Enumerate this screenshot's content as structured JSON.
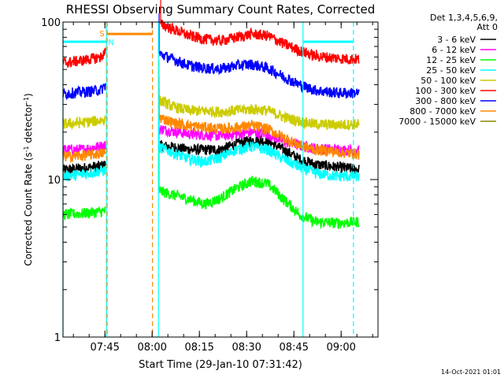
{
  "chart_data": {
    "type": "line",
    "title": "RHESSI Observing Summary Count Rates, Corrected",
    "xlabel": "Start Time (29-Jan-10 07:31:42)",
    "ylabel_main": "Corrected Count Rate (s",
    "ylabel_sup1": "-1",
    "ylabel_mid": " detector",
    "ylabel_sup2": "-1",
    "ylabel_end": ")",
    "x_range_min": [
      0,
      100
    ],
    "ylim": [
      1,
      100
    ],
    "yscale": "log",
    "x_ticks": [
      {
        "label": "07:45",
        "min": 13.3
      },
      {
        "label": "08:00",
        "min": 28.3
      },
      {
        "label": "08:15",
        "min": 43.3
      },
      {
        "label": "08:30",
        "min": 58.3
      },
      {
        "label": "08:45",
        "min": 73.3
      },
      {
        "label": "09:00",
        "min": 88.3
      }
    ],
    "y_tick_labels": [
      {
        "label": "1",
        "v": 1
      },
      {
        "label": "10",
        "v": 10
      },
      {
        "label": "100",
        "v": 100
      }
    ],
    "legend_header": [
      "Det 1,3,4,5,6,9,",
      "Att 0"
    ],
    "legend_position": "right",
    "series": [
      {
        "name": "3 - 6 keV",
        "color": "#000000",
        "segments": [
          [
            [
              0,
              11.5
            ],
            [
              6,
              11.8
            ],
            [
              12,
              12.2
            ],
            [
              13.5,
              12.5
            ]
          ],
          [
            [
              30.5,
              16.5
            ],
            [
              40,
              15.5
            ],
            [
              50,
              15.5
            ],
            [
              55,
              16.8
            ],
            [
              60,
              17.8
            ],
            [
              65,
              17.5
            ],
            [
              70,
              15.5
            ],
            [
              75,
              13.5
            ],
            [
              80,
              12.5
            ],
            [
              87,
              12.0
            ],
            [
              94,
              11.6
            ]
          ]
        ]
      },
      {
        "name": "6 - 12 keV",
        "color": "#ff00ff",
        "segments": [
          [
            [
              0,
              15.5
            ],
            [
              6,
              15.5
            ],
            [
              13.5,
              16.5
            ]
          ],
          [
            [
              30.5,
              21
            ],
            [
              40,
              19.5
            ],
            [
              50,
              19.0
            ],
            [
              55,
              19.5
            ],
            [
              60,
              20.0
            ],
            [
              65,
              19.5
            ],
            [
              70,
              17.5
            ],
            [
              75,
              16.5
            ],
            [
              80,
              15.8
            ],
            [
              87,
              15.5
            ],
            [
              94,
              15.3
            ]
          ]
        ]
      },
      {
        "name": "12 - 25 keV",
        "color": "#00ff00",
        "segments": [
          [
            [
              0,
              6.0
            ],
            [
              6,
              6.1
            ],
            [
              13.5,
              6.3
            ]
          ],
          [
            [
              30.5,
              8.5
            ],
            [
              35,
              8.0
            ],
            [
              40,
              7.5
            ],
            [
              45,
              7.0
            ],
            [
              50,
              7.6
            ],
            [
              55,
              8.8
            ],
            [
              60,
              9.8
            ],
            [
              65,
              9.4
            ],
            [
              70,
              7.5
            ],
            [
              75,
              6.0
            ],
            [
              80,
              5.4
            ],
            [
              87,
              5.3
            ],
            [
              94,
              5.4
            ]
          ]
        ]
      },
      {
        "name": "25 - 50 keV",
        "color": "#00ffff",
        "segments": [
          [
            [
              0,
              10.5
            ],
            [
              6,
              10.8
            ],
            [
              13.5,
              11.5
            ]
          ],
          [
            [
              30.5,
              16.0
            ],
            [
              40,
              13.5
            ],
            [
              45,
              13.0
            ],
            [
              50,
              13.8
            ],
            [
              55,
              15.5
            ],
            [
              60,
              16.2
            ],
            [
              65,
              15.5
            ],
            [
              70,
              13.5
            ],
            [
              75,
              12.0
            ],
            [
              80,
              11.0
            ],
            [
              87,
              10.5
            ],
            [
              94,
              10.5
            ]
          ]
        ]
      },
      {
        "name": "50 - 100 keV",
        "color": "#cccc00",
        "segments": [
          [
            [
              0,
              22.5
            ],
            [
              6,
              23.0
            ],
            [
              13.5,
              24.0
            ]
          ],
          [
            [
              30.5,
              32
            ],
            [
              35,
              29
            ],
            [
              40,
              27.5
            ],
            [
              50,
              27
            ],
            [
              55,
              27.5
            ],
            [
              60,
              28
            ],
            [
              65,
              27.5
            ],
            [
              70,
              25
            ],
            [
              75,
              23.5
            ],
            [
              80,
              22.5
            ],
            [
              87,
              22.3
            ],
            [
              94,
              22.5
            ]
          ]
        ]
      },
      {
        "name": "100 - 300 keV",
        "color": "#ff0000",
        "segments": [
          [
            [
              0,
              55
            ],
            [
              6,
              57
            ],
            [
              12,
              60
            ],
            [
              13.5,
              65
            ]
          ],
          [
            [
              31,
              97
            ],
            [
              35,
              90
            ],
            [
              40,
              82
            ],
            [
              45,
              78
            ],
            [
              50,
              76
            ],
            [
              55,
              80
            ],
            [
              60,
              84
            ],
            [
              65,
              82
            ],
            [
              70,
              73
            ],
            [
              75,
              66
            ],
            [
              80,
              61
            ],
            [
              87,
              59
            ],
            [
              94,
              58
            ]
          ]
        ]
      },
      {
        "name": "300 - 800 keV",
        "color": "#0000ff",
        "segments": [
          [
            [
              0,
              35
            ],
            [
              6,
              36
            ],
            [
              12,
              37
            ],
            [
              13.5,
              40
            ]
          ],
          [
            [
              30.5,
              63
            ],
            [
              35,
              58
            ],
            [
              40,
              53
            ],
            [
              45,
              51
            ],
            [
              50,
              50.5
            ],
            [
              55,
              53
            ],
            [
              60,
              54
            ],
            [
              65,
              51
            ],
            [
              70,
              45
            ],
            [
              75,
              40
            ],
            [
              80,
              37
            ],
            [
              87,
              35.5
            ],
            [
              94,
              35.5
            ]
          ]
        ]
      },
      {
        "name": "800 - 7000 keV",
        "color": "#ff8800",
        "segments": [
          [
            [
              0,
              14.0
            ],
            [
              6,
              14.2
            ],
            [
              13.5,
              14.8
            ]
          ],
          [
            [
              30.5,
              25
            ],
            [
              35,
              23
            ],
            [
              40,
              22
            ],
            [
              45,
              21.5
            ],
            [
              50,
              21
            ],
            [
              55,
              21.5
            ],
            [
              60,
              22
            ],
            [
              65,
              21
            ],
            [
              70,
              18.5
            ],
            [
              75,
              16.5
            ],
            [
              80,
              15.5
            ],
            [
              87,
              15.0
            ],
            [
              94,
              14.5
            ]
          ]
        ]
      },
      {
        "name": "7000 - 15000 keV",
        "color": "#888800",
        "segments": []
      }
    ],
    "flags": [
      {
        "label": "S",
        "color": "#ff8800",
        "segment_min": [
          13.9,
          28.4
        ],
        "y": 84
      },
      {
        "label": "N",
        "color": "#00ffff",
        "segment_min": [
          0,
          13.8
        ],
        "y": 75
      },
      {
        "label": "",
        "color": "#00ffff",
        "segment_min": [
          76.2,
          92.2
        ],
        "y": 75
      }
    ],
    "vlines": [
      {
        "min": 0.0,
        "color": "#00ffff",
        "style": "solid"
      },
      {
        "min": 13.8,
        "color": "#00ffff",
        "style": "solid"
      },
      {
        "min": 30.3,
        "color": "#00ffff",
        "style": "solid"
      },
      {
        "min": 76.2,
        "color": "#00ffff",
        "style": "solid"
      },
      {
        "min": 92.2,
        "color": "#00ffff",
        "style": "dashed"
      },
      {
        "min": 14.0,
        "color": "#ff8800",
        "style": "dashed"
      },
      {
        "min": 28.4,
        "color": "#ff8800",
        "style": "dashed"
      }
    ]
  },
  "timestamp": "14-Oct-2021 01:01"
}
